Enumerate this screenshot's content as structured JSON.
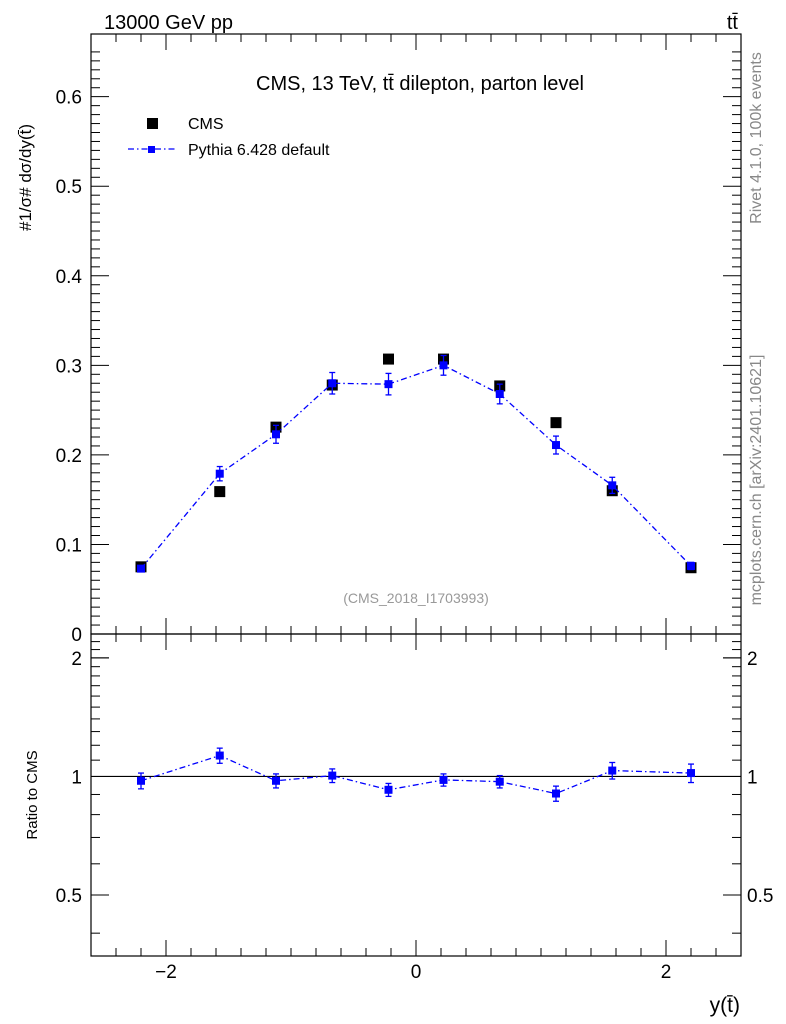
{
  "header": {
    "energy_label": "13000 GeV pp",
    "process_label": "tt̄"
  },
  "side": {
    "rivet_label": "Rivet 4.1.0,  100k events",
    "source_label": "mcplots.cern.ch [arXiv:2401.10621]"
  },
  "chart_data": {
    "type": "scatter",
    "title": "CMS, 13 TeV, tt̄ dilepton, parton level",
    "watermark": "(CMS_2018_I1703993)",
    "xlabel": "y(t̄)",
    "ylabel": "#1/σ# dσ/dy(t̄)",
    "ratio_ylabel": "Ratio to CMS",
    "xlim": [
      -2.6,
      2.6
    ],
    "ylim": [
      0,
      0.67
    ],
    "ratio_ylim": [
      0.35,
      2.3
    ],
    "x_ticks": [
      -2,
      0,
      2
    ],
    "x_tick_labels": [
      "−2",
      "0",
      "2"
    ],
    "y_ticks": [
      0.1,
      0.2,
      0.3,
      0.4,
      0.5,
      0.6
    ],
    "y_tick_labels": [
      "0.1",
      "0.2",
      "0.3",
      "0.4",
      "0.5",
      "0.6"
    ],
    "y_zero_label": "0",
    "ratio_ticks": [
      0.5,
      1,
      2
    ],
    "ratio_tick_labels": [
      "0.5",
      "1",
      "2"
    ],
    "legend_position": "top-left",
    "x": [
      -2.2,
      -1.57,
      -1.12,
      -0.67,
      -0.22,
      0.22,
      0.67,
      1.12,
      1.57,
      2.2
    ],
    "series": [
      {
        "name": "CMS",
        "color": "#000000",
        "values": [
          0.075,
          0.159,
          0.231,
          0.278,
          0.307,
          0.307,
          0.277,
          0.236,
          0.16,
          0.074
        ]
      },
      {
        "name": "Pythia 6.428 default",
        "color": "#0000ff",
        "values": [
          0.073,
          0.179,
          0.223,
          0.28,
          0.279,
          0.3,
          0.268,
          0.211,
          0.166,
          0.076
        ],
        "errors": [
          0.003,
          0.008,
          0.01,
          0.012,
          0.012,
          0.011,
          0.011,
          0.01,
          0.009,
          0.004
        ]
      }
    ],
    "ratio": {
      "name": "Pythia 6.428 default / CMS",
      "values": [
        0.975,
        1.13,
        0.975,
        1.005,
        0.925,
        0.98,
        0.97,
        0.905,
        1.035,
        1.02
      ],
      "errors": [
        0.045,
        0.05,
        0.04,
        0.04,
        0.035,
        0.035,
        0.035,
        0.04,
        0.05,
        0.055
      ]
    }
  }
}
